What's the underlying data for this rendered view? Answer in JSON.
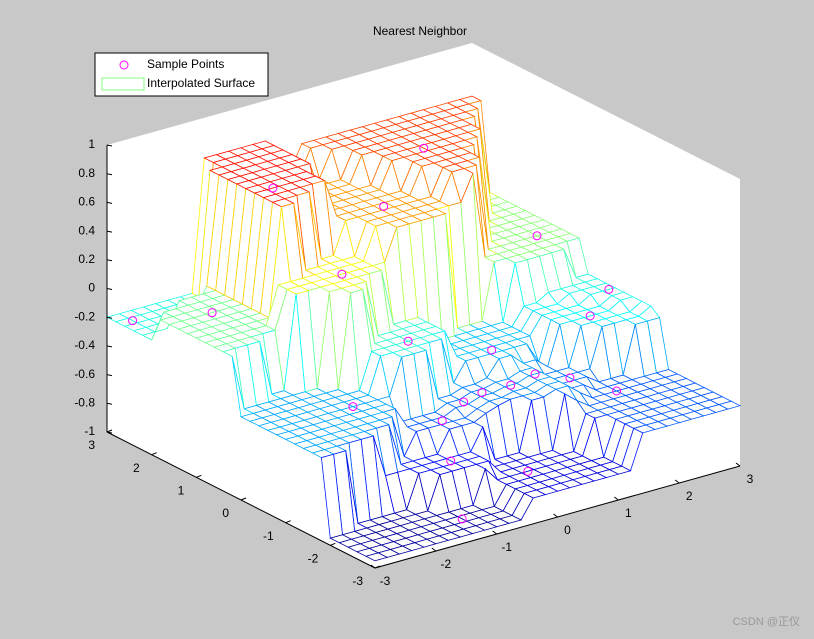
{
  "chart_data": {
    "type": "surface3d",
    "title": "Nearest Neighbor",
    "series": [
      {
        "name": "Sample Points",
        "color": "#ff00ff",
        "x": [
          -2.8,
          -2.3,
          -1.3,
          -0.9,
          -1.6,
          -0.4,
          0.3,
          1.4,
          2.6,
          2.9,
          2.3,
          0.9,
          0.3,
          -0.5,
          -0.8,
          -1.2,
          0.1,
          1.1,
          1.6,
          2.0,
          0.7,
          0.0
        ],
        "y": [
          2.7,
          1.6,
          1.6,
          0.6,
          -0.6,
          -0.2,
          1.3,
          1.9,
          1.0,
          -0.2,
          -0.6,
          -0.3,
          -0.9,
          -1.1,
          -1.7,
          -2.5,
          -2.2,
          -1.0,
          -1.1,
          -1.6,
          -1.0,
          -0.9
        ],
        "z": [
          -0.2,
          -0.03,
          0.72,
          0.23,
          -0.42,
          -0.17,
          0.45,
          0.63,
          0.02,
          -0.2,
          -0.25,
          -0.37,
          -0.5,
          -0.57,
          -0.72,
          -0.95,
          -0.82,
          -0.45,
          -0.52,
          -0.58,
          -0.48,
          -0.53
        ]
      },
      {
        "name": "Interpolated Surface",
        "color": "#80ff80"
      }
    ],
    "colormap": "jet",
    "xlim": [
      -3,
      3
    ],
    "ylim": [
      -3,
      3
    ],
    "zlim": [
      -1,
      1
    ],
    "xticks": [
      -3,
      -2,
      -1,
      0,
      1,
      2,
      3
    ],
    "yticks": [
      -3,
      -2,
      -1,
      0,
      1,
      2,
      3
    ],
    "zticks": [
      -1,
      -0.8,
      -0.6,
      -0.4,
      -0.2,
      0,
      0.2,
      0.4,
      0.6,
      0.8,
      1
    ],
    "legend": "upper left"
  },
  "watermark": "CSDN @正仪"
}
